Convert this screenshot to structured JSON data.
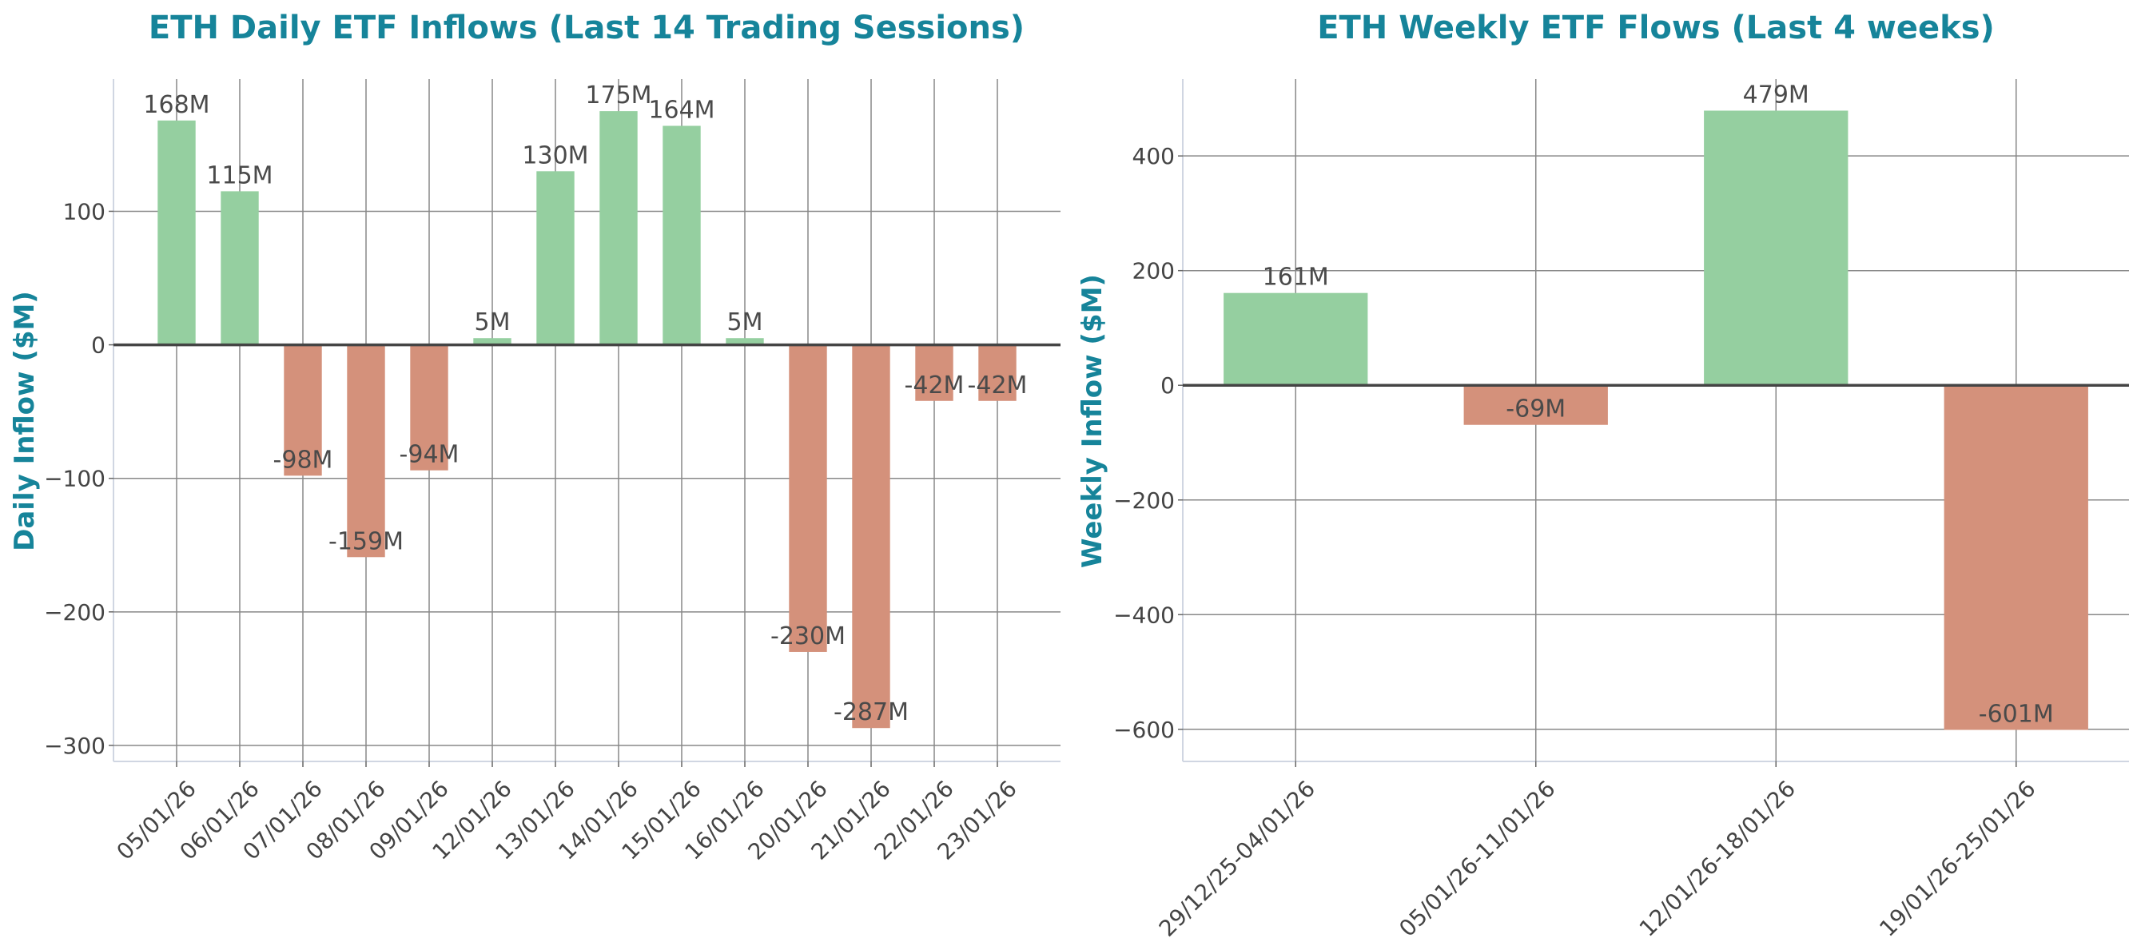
{
  "colors": {
    "positive": "#95cfa0",
    "negative": "#d4917b",
    "title": "#16849a",
    "grid": "#888888",
    "zero_line": "#444444"
  },
  "chart_data": [
    {
      "type": "bar",
      "title": "ETH Daily ETF Inflows (Last 14 Trading Sessions)",
      "xlabel": "",
      "ylabel": "Daily Inflow ($M)",
      "categories": [
        "05/01/26",
        "06/01/26",
        "07/01/26",
        "08/01/26",
        "09/01/26",
        "12/01/26",
        "13/01/26",
        "14/01/26",
        "15/01/26",
        "16/01/26",
        "20/01/26",
        "21/01/26",
        "22/01/26",
        "23/01/26"
      ],
      "values": [
        168,
        115,
        -98,
        -159,
        -94,
        5,
        130,
        175,
        164,
        5,
        -230,
        -287,
        -42,
        -42
      ],
      "data_labels": [
        "168M",
        "115M",
        "-98M",
        "-159M",
        "-94M",
        "5M",
        "130M",
        "175M",
        "164M",
        "5M",
        "-230M",
        "-287M",
        "-42M",
        "-42M"
      ],
      "yticks": [
        -300,
        -200,
        -100,
        0,
        100
      ],
      "ytick_labels": [
        "−300",
        "−200",
        "−100",
        "0",
        "100"
      ],
      "ylim": [
        -312,
        199
      ],
      "grid": true
    },
    {
      "type": "bar",
      "title": "ETH Weekly ETF Flows (Last 4 weeks)",
      "xlabel": "",
      "ylabel": "Weekly Inflow ($M)",
      "categories": [
        "29/12/25-04/01/26",
        "05/01/26-11/01/26",
        "12/01/26-18/01/26",
        "19/01/26-25/01/26"
      ],
      "values": [
        161,
        -69,
        479,
        -601
      ],
      "data_labels": [
        "161M",
        "-69M",
        "479M",
        "-601M"
      ],
      "yticks": [
        -600,
        -400,
        -200,
        0,
        200,
        400
      ],
      "ytick_labels": [
        "−600",
        "−400",
        "−200",
        "0",
        "200",
        "400"
      ],
      "ylim": [
        -656,
        534
      ],
      "grid": true
    }
  ]
}
